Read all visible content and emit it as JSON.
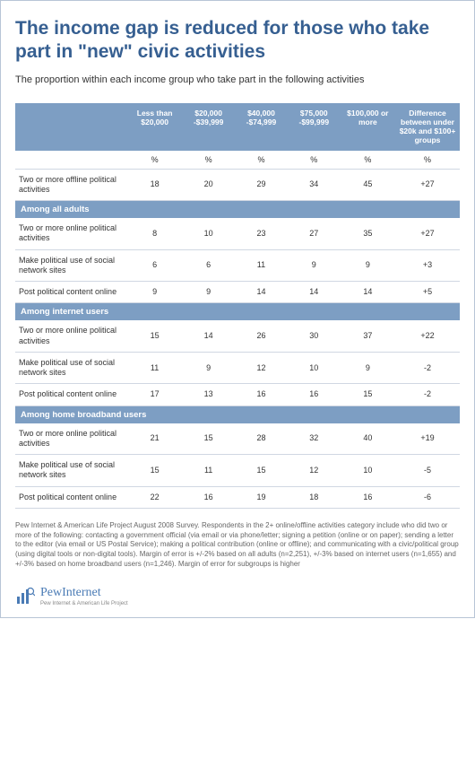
{
  "title": "The income gap is reduced for those who take part in \"new\" civic activities",
  "subtitle": "The proportion within each income group who take part in the following activities",
  "columns": [
    "",
    "Less than $20,000",
    "$20,000 -$39,999",
    "$40,000 -$74,999",
    "$75,000 -$99,999",
    "$100,000 or more",
    "Difference between under $20k and $100+ groups"
  ],
  "pct_label": "%",
  "top_rows": [
    {
      "label": "Two or more offline political activities",
      "vals": [
        "18",
        "20",
        "29",
        "34",
        "45",
        "+27"
      ]
    }
  ],
  "sections": [
    {
      "header": "Among all adults",
      "rows": [
        {
          "label": "Two or more online political activities",
          "vals": [
            "8",
            "10",
            "23",
            "27",
            "35",
            "+27"
          ]
        },
        {
          "label": "Make political use of social network sites",
          "vals": [
            "6",
            "6",
            "11",
            "9",
            "9",
            "+3"
          ]
        },
        {
          "label": "Post political content online",
          "vals": [
            "9",
            "9",
            "14",
            "14",
            "14",
            "+5"
          ]
        }
      ]
    },
    {
      "header": "Among internet users",
      "rows": [
        {
          "label": "Two or more online political activities",
          "vals": [
            "15",
            "14",
            "26",
            "30",
            "37",
            "+22"
          ]
        },
        {
          "label": "Make political use of social network sites",
          "vals": [
            "11",
            "9",
            "12",
            "10",
            "9",
            "-2"
          ]
        },
        {
          "label": "Post political content online",
          "vals": [
            "17",
            "13",
            "16",
            "16",
            "15",
            "-2"
          ]
        }
      ]
    },
    {
      "header": "Among home broadband users",
      "rows": [
        {
          "label": "Two or more online political activities",
          "vals": [
            "21",
            "15",
            "28",
            "32",
            "40",
            "+19"
          ]
        },
        {
          "label": "Make political use of social network sites",
          "vals": [
            "15",
            "11",
            "15",
            "12",
            "10",
            "-5"
          ]
        },
        {
          "label": "Post political content online",
          "vals": [
            "22",
            "16",
            "19",
            "18",
            "16",
            "-6"
          ]
        }
      ]
    }
  ],
  "footnote": "Pew Internet & American Life Project August 2008 Survey. Respondents in the 2+ online/offline activities category include who did two or more of the following: contacting a government official (via email or via phone/letter; signing a petition (online or on paper); sending a letter to the editor (via email or US Postal Service); making a political contribution (online or offline); and communicating with a civic/political group (using digital tools or non-digital tools). Margin of error is +/-2% based on all adults (n=2,251), +/-3% based on internet users (n=1,655) and +/-3% based on home broadband users (n=1,246). Margin of error for subgroups is higher",
  "logo": {
    "text": "PewInternet",
    "sub": "Pew Internet & American Life Project"
  },
  "colors": {
    "title": "#365f91",
    "section_bg": "#7d9ec3",
    "border": "#b8c5d6",
    "row_border": "#d0d7e2",
    "logo": "#4a7bb5"
  }
}
